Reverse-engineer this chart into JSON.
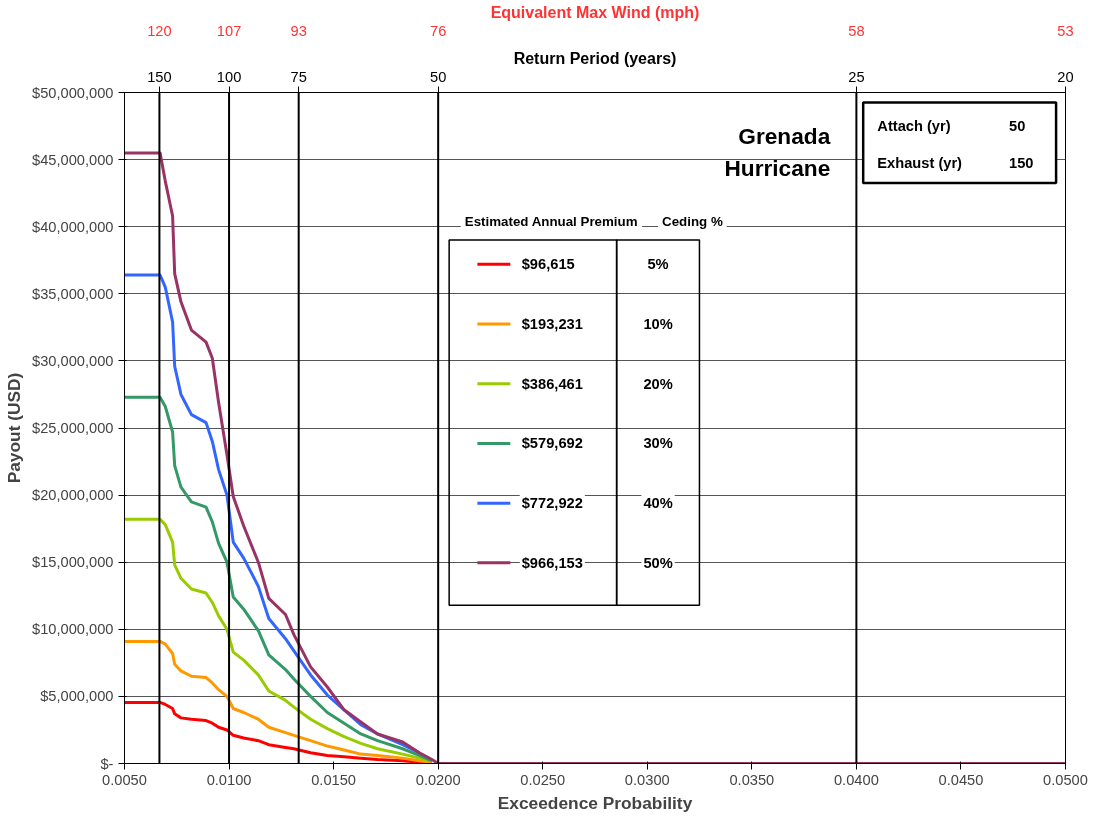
{
  "chart_data": {
    "type": "line",
    "title": "Grenada Hurricane",
    "xlabel": "Exceedence Probability",
    "ylabel": "Payout (USD)",
    "legend_title": "Estimated Annual Premium",
    "x": [
      0.005,
      0.0067,
      0.00695,
      0.0073,
      0.0074,
      0.0077,
      0.0082,
      0.0089,
      0.0092,
      0.0095,
      0.0099,
      0.0102,
      0.0107,
      0.0114,
      0.0119,
      0.0127,
      0.0131,
      0.0139,
      0.0147,
      0.0155,
      0.0163,
      0.0171,
      0.0183,
      0.0191,
      0.0197,
      0.02,
      0.05
    ],
    "series": [
      {
        "name": "$96,615",
        "color": "#ff0000",
        "x": [
          0.005,
          0.0067,
          0.00695,
          0.0073,
          0.0074,
          0.0077,
          0.0082,
          0.0089,
          0.0092,
          0.0095,
          0.0099,
          0.0102,
          0.0107,
          0.0114,
          0.0119,
          0.0127,
          0.0131,
          0.0139,
          0.0147,
          0.0155,
          0.0163,
          0.0171,
          0.0183,
          0.0191,
          0.0197
        ],
        "values": [
          4550000,
          4550000,
          4400000,
          4100000,
          3700000,
          3400000,
          3300000,
          3200000,
          3000000,
          2700000,
          2500000,
          2100000,
          1900000,
          1700000,
          1400000,
          1200000,
          1100000,
          800000,
          600000,
          500000,
          400000,
          300000,
          200000,
          100000,
          50000
        ]
      },
      {
        "name": "$193,231",
        "color": "#ff9900",
        "x": [
          0.005,
          0.0067,
          0.00695,
          0.0073,
          0.0074,
          0.0077,
          0.0082,
          0.0089,
          0.0092,
          0.0095,
          0.0099,
          0.0102,
          0.0107,
          0.0114,
          0.0119,
          0.0127,
          0.0131,
          0.0139,
          0.0147,
          0.0155,
          0.0163,
          0.0171,
          0.0183,
          0.0191,
          0.0197
        ],
        "values": [
          9100000,
          9100000,
          8900000,
          8200000,
          7400000,
          6900000,
          6500000,
          6400000,
          6000000,
          5500000,
          5000000,
          4100000,
          3800000,
          3300000,
          2700000,
          2300000,
          2100000,
          1700000,
          1300000,
          1000000,
          700000,
          600000,
          400000,
          200000,
          100000
        ]
      },
      {
        "name": "$386,461",
        "color": "#99cc00",
        "x": [
          0.005,
          0.0067,
          0.00695,
          0.0073,
          0.0074,
          0.0077,
          0.0082,
          0.0089,
          0.0092,
          0.0095,
          0.0099,
          0.0102,
          0.0107,
          0.0114,
          0.0119,
          0.0127,
          0.0131,
          0.0139,
          0.0147,
          0.0155,
          0.0163,
          0.0171,
          0.0183,
          0.0191,
          0.0197
        ],
        "values": [
          18200000,
          18200000,
          17800000,
          16500000,
          14800000,
          13800000,
          13000000,
          12700000,
          12000000,
          11000000,
          10000000,
          8300000,
          7700000,
          6600000,
          5400000,
          4700000,
          4200000,
          3300000,
          2600000,
          2000000,
          1500000,
          1100000,
          700000,
          400000,
          200000
        ]
      },
      {
        "name": "$579,692",
        "color": "#339966",
        "x": [
          0.005,
          0.0067,
          0.00695,
          0.0073,
          0.0074,
          0.0077,
          0.0082,
          0.0089,
          0.0092,
          0.0095,
          0.0099,
          0.0102,
          0.0107,
          0.0114,
          0.0119,
          0.0127,
          0.0131,
          0.0139,
          0.0147,
          0.0155,
          0.0163,
          0.0171,
          0.0183,
          0.0191,
          0.0197
        ],
        "values": [
          27300000,
          27300000,
          26600000,
          24700000,
          22200000,
          20600000,
          19500000,
          19100000,
          18000000,
          16400000,
          15000000,
          12400000,
          11500000,
          9900000,
          8100000,
          7000000,
          6300000,
          5000000,
          3800000,
          3000000,
          2200000,
          1700000,
          1100000,
          600000,
          200000
        ]
      },
      {
        "name": "$772,922",
        "color": "#3366ff",
        "x": [
          0.005,
          0.0067,
          0.00695,
          0.0073,
          0.0074,
          0.0077,
          0.0082,
          0.0089,
          0.0092,
          0.0095,
          0.0099,
          0.0102,
          0.0107,
          0.0114,
          0.0119,
          0.0127,
          0.0131,
          0.0139,
          0.0147,
          0.0155,
          0.0163,
          0.0171,
          0.0183,
          0.0191
        ],
        "values": [
          36400000,
          36400000,
          35500000,
          32900000,
          29600000,
          27500000,
          26000000,
          25400000,
          24000000,
          21900000,
          20000000,
          16500000,
          15300000,
          13200000,
          10800000,
          9300000,
          8400000,
          6600000,
          5100000,
          4000000,
          2900000,
          2200000,
          1400000,
          800000
        ]
      },
      {
        "name": "$966,153",
        "color": "#993366",
        "values": [
          45500000,
          45500000,
          43400000,
          40800000,
          36500000,
          34400000,
          32300000,
          31400000,
          30200000,
          26900000,
          23000000,
          19900000,
          17700000,
          15000000,
          12300000,
          11100000,
          9600000,
          7200000,
          5700000,
          4000000,
          3100000,
          2200000,
          1600000,
          800000,
          300000,
          0,
          0
        ]
      }
    ],
    "xlim": [
      0.005,
      0.05
    ],
    "xticks": [
      {
        "value": 0.005,
        "label": "0.0050"
      },
      {
        "value": 0.01,
        "label": "0.0100"
      },
      {
        "value": 0.015,
        "label": "0.0150"
      },
      {
        "value": 0.02,
        "label": "0.0200"
      },
      {
        "value": 0.025,
        "label": "0.0250"
      },
      {
        "value": 0.03,
        "label": "0.0300"
      },
      {
        "value": 0.035,
        "label": "0.0350"
      },
      {
        "value": 0.04,
        "label": "0.0400"
      },
      {
        "value": 0.045,
        "label": "0.0450"
      },
      {
        "value": 0.05,
        "label": "0.0500"
      }
    ],
    "ylim": [
      0,
      50000000
    ],
    "yticks": [
      {
        "value": 0,
        "label": "$-"
      },
      {
        "value": 5000000,
        "label": "$5,000,000"
      },
      {
        "value": 10000000,
        "label": "$10,000,000"
      },
      {
        "value": 15000000,
        "label": "$15,000,000"
      },
      {
        "value": 20000000,
        "label": "$20,000,000"
      },
      {
        "value": 25000000,
        "label": "$25,000,000"
      },
      {
        "value": 30000000,
        "label": "$30,000,000"
      },
      {
        "value": 35000000,
        "label": "$35,000,000"
      },
      {
        "value": 40000000,
        "label": "$40,000,000"
      },
      {
        "value": 45000000,
        "label": "$45,000,000"
      },
      {
        "value": 50000000,
        "label": "$50,000,000"
      }
    ],
    "ref_lines": [
      {
        "axis": "x",
        "value": 0.00667,
        "color": "#000000"
      },
      {
        "axis": "x",
        "value": 0.01,
        "color": "#000000"
      },
      {
        "axis": "x",
        "value": 0.01333,
        "color": "#000000"
      },
      {
        "axis": "x",
        "value": 0.02,
        "color": "#000000"
      },
      {
        "axis": "x",
        "value": 0.04,
        "color": "#000000"
      }
    ],
    "annotations": [
      "Return Period (years)",
      "Equivalent Max Wind (mph)",
      "150",
      "100",
      "75",
      "50",
      "25",
      "20",
      "120",
      "107",
      "93",
      "76",
      "58",
      "53",
      "Attach (yr)",
      "50",
      "Exhaust (yr)",
      "150",
      "Ceding %",
      "5%",
      "10%",
      "20%",
      "30%",
      "40%",
      "50%"
    ],
    "grid": "y",
    "legend": "top",
    "line_style": "solid",
    "marker": "none"
  }
}
